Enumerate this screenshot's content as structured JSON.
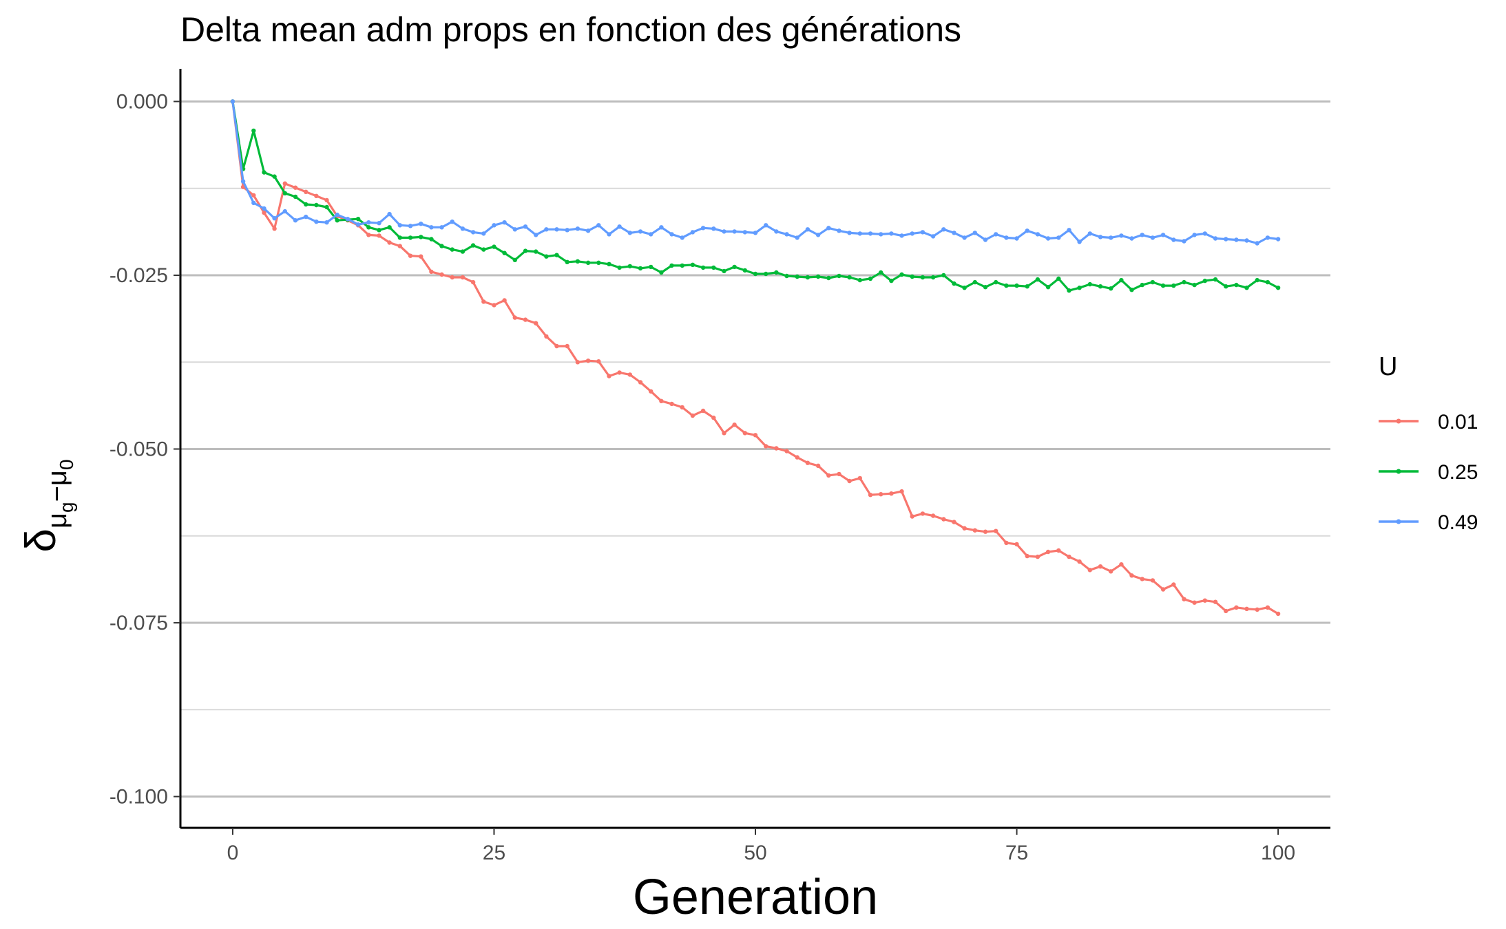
{
  "chart_data": {
    "type": "line",
    "title": "Delta mean adm props en fonction des générations",
    "xlabel": "Generation",
    "ylabel": {
      "symbol": "δ",
      "subscript_left": "μ",
      "subscript_left_sub": "g",
      "operator": "−",
      "subscript_right": "μ",
      "subscript_right_sub": "0"
    },
    "xlim": [
      -5,
      105
    ],
    "ylim": [
      -0.1045,
      0.0047
    ],
    "x_ticks": [
      0,
      25,
      50,
      75,
      100
    ],
    "x_tick_labels": [
      "0",
      "25",
      "50",
      "75",
      "100"
    ],
    "y_ticks": [
      0.0,
      -0.025,
      -0.05,
      -0.075,
      -0.1
    ],
    "y_tick_labels": [
      "0.000",
      "-0.025",
      "-0.050",
      "-0.075",
      "-0.100"
    ],
    "y_minor_ticks": [
      -0.0125,
      -0.0375,
      -0.0625,
      -0.0875
    ],
    "grid": "horizontal",
    "legend": {
      "title": "U",
      "position": "right"
    },
    "series": [
      {
        "name": "0.01",
        "color": "#F8766D",
        "x": [
          0,
          1,
          2,
          3,
          4,
          5,
          6,
          7,
          8,
          9,
          10,
          11,
          12,
          13,
          14,
          15,
          16,
          17,
          18,
          19,
          20,
          21,
          22,
          23,
          24,
          25,
          26,
          27,
          28,
          29,
          30,
          31,
          32,
          33,
          34,
          35,
          36,
          37,
          38,
          39,
          40,
          41,
          42,
          43,
          44,
          45,
          46,
          47,
          48,
          49,
          50,
          51,
          52,
          53,
          54,
          55,
          56,
          57,
          58,
          59,
          60,
          61,
          62,
          63,
          64,
          65,
          66,
          67,
          68,
          69,
          70,
          71,
          72,
          73,
          74,
          75,
          76,
          77,
          78,
          79,
          80,
          81,
          82,
          83,
          84,
          85,
          86,
          87,
          88,
          89,
          90,
          91,
          92,
          93,
          94,
          95,
          96,
          97,
          98,
          99,
          100
        ],
        "values": [
          0,
          -0.0123,
          -0.0135,
          -0.016,
          -0.0183,
          -0.0118,
          -0.0124,
          -0.013,
          -0.0136,
          -0.0142,
          -0.0165,
          -0.0171,
          -0.0178,
          -0.0192,
          -0.0193,
          -0.0203,
          -0.0208,
          -0.0222,
          -0.0223,
          -0.0245,
          -0.0249,
          -0.0253,
          -0.0253,
          -0.026,
          -0.0288,
          -0.0293,
          -0.0286,
          -0.0311,
          -0.0314,
          -0.0319,
          -0.0338,
          -0.0352,
          -0.0352,
          -0.0375,
          -0.0373,
          -0.0374,
          -0.0395,
          -0.039,
          -0.0393,
          -0.0404,
          -0.0417,
          -0.0431,
          -0.0435,
          -0.044,
          -0.0452,
          -0.0445,
          -0.0455,
          -0.0477,
          -0.0465,
          -0.0477,
          -0.048,
          -0.0496,
          -0.0499,
          -0.0503,
          -0.0512,
          -0.052,
          -0.0524,
          -0.0538,
          -0.0536,
          -0.0546,
          -0.0542,
          -0.0566,
          -0.0565,
          -0.0564,
          -0.0561,
          -0.0597,
          -0.0593,
          -0.0596,
          -0.0601,
          -0.0605,
          -0.0614,
          -0.0617,
          -0.0619,
          -0.0618,
          -0.0635,
          -0.0637,
          -0.0654,
          -0.0655,
          -0.0648,
          -0.0646,
          -0.0655,
          -0.0662,
          -0.0674,
          -0.0669,
          -0.0676,
          -0.0666,
          -0.0682,
          -0.0687,
          -0.0689,
          -0.0702,
          -0.0695,
          -0.0716,
          -0.0721,
          -0.0718,
          -0.072,
          -0.0733,
          -0.0728,
          -0.073,
          -0.0731,
          -0.0728,
          -0.0737
        ]
      },
      {
        "name": "0.25",
        "color": "#00BA38",
        "x": [
          0,
          1,
          2,
          3,
          4,
          5,
          6,
          7,
          8,
          9,
          10,
          11,
          12,
          13,
          14,
          15,
          16,
          17,
          18,
          19,
          20,
          21,
          22,
          23,
          24,
          25,
          26,
          27,
          28,
          29,
          30,
          31,
          32,
          33,
          34,
          35,
          36,
          37,
          38,
          39,
          40,
          41,
          42,
          43,
          44,
          45,
          46,
          47,
          48,
          49,
          50,
          51,
          52,
          53,
          54,
          55,
          56,
          57,
          58,
          59,
          60,
          61,
          62,
          63,
          64,
          65,
          66,
          67,
          68,
          69,
          70,
          71,
          72,
          73,
          74,
          75,
          76,
          77,
          78,
          79,
          80,
          81,
          82,
          83,
          84,
          85,
          86,
          87,
          88,
          89,
          90,
          91,
          92,
          93,
          94,
          95,
          96,
          97,
          98,
          99,
          100
        ],
        "values": [
          0,
          -0.0097,
          -0.0042,
          -0.0102,
          -0.0108,
          -0.0132,
          -0.0137,
          -0.0148,
          -0.0149,
          -0.0152,
          -0.0171,
          -0.017,
          -0.0169,
          -0.0181,
          -0.0185,
          -0.0181,
          -0.0196,
          -0.0196,
          -0.0195,
          -0.0198,
          -0.0208,
          -0.0213,
          -0.0216,
          -0.0207,
          -0.0213,
          -0.0209,
          -0.0218,
          -0.0228,
          -0.0215,
          -0.0216,
          -0.0223,
          -0.0221,
          -0.0231,
          -0.023,
          -0.0232,
          -0.0232,
          -0.0234,
          -0.0239,
          -0.0237,
          -0.024,
          -0.0238,
          -0.0246,
          -0.0236,
          -0.0236,
          -0.0235,
          -0.0239,
          -0.0239,
          -0.0244,
          -0.0238,
          -0.0243,
          -0.0248,
          -0.0248,
          -0.0246,
          -0.0251,
          -0.0252,
          -0.0253,
          -0.0252,
          -0.0254,
          -0.0251,
          -0.0253,
          -0.0257,
          -0.0255,
          -0.0246,
          -0.0258,
          -0.0249,
          -0.0252,
          -0.0253,
          -0.0253,
          -0.025,
          -0.0262,
          -0.0268,
          -0.026,
          -0.0267,
          -0.026,
          -0.0265,
          -0.0265,
          -0.0266,
          -0.0256,
          -0.0267,
          -0.0255,
          -0.0272,
          -0.0268,
          -0.0263,
          -0.0266,
          -0.0269,
          -0.0257,
          -0.0271,
          -0.0264,
          -0.026,
          -0.0265,
          -0.0265,
          -0.026,
          -0.0264,
          -0.0258,
          -0.0256,
          -0.0266,
          -0.0264,
          -0.0268,
          -0.0257,
          -0.026,
          -0.0268
        ]
      },
      {
        "name": "0.49",
        "color": "#619CFF",
        "x": [
          0,
          1,
          2,
          3,
          4,
          5,
          6,
          7,
          8,
          9,
          10,
          11,
          12,
          13,
          14,
          15,
          16,
          17,
          18,
          19,
          20,
          21,
          22,
          23,
          24,
          25,
          26,
          27,
          28,
          29,
          30,
          31,
          32,
          33,
          34,
          35,
          36,
          37,
          38,
          39,
          40,
          41,
          42,
          43,
          44,
          45,
          46,
          47,
          48,
          49,
          50,
          51,
          52,
          53,
          54,
          55,
          56,
          57,
          58,
          59,
          60,
          61,
          62,
          63,
          64,
          65,
          66,
          67,
          68,
          69,
          70,
          71,
          72,
          73,
          74,
          75,
          76,
          77,
          78,
          79,
          80,
          81,
          82,
          83,
          84,
          85,
          86,
          87,
          88,
          89,
          90,
          91,
          92,
          93,
          94,
          95,
          96,
          97,
          98,
          99,
          100
        ],
        "values": [
          0,
          -0.0115,
          -0.0146,
          -0.0154,
          -0.0168,
          -0.0158,
          -0.0171,
          -0.0166,
          -0.0173,
          -0.0174,
          -0.0163,
          -0.0169,
          -0.0177,
          -0.0174,
          -0.0175,
          -0.0162,
          -0.0178,
          -0.0179,
          -0.0176,
          -0.0181,
          -0.0181,
          -0.0173,
          -0.0183,
          -0.0188,
          -0.019,
          -0.0178,
          -0.0174,
          -0.0184,
          -0.018,
          -0.0192,
          -0.0184,
          -0.0184,
          -0.0185,
          -0.0183,
          -0.0186,
          -0.0178,
          -0.0191,
          -0.018,
          -0.0189,
          -0.0187,
          -0.0191,
          -0.0181,
          -0.0191,
          -0.0196,
          -0.0188,
          -0.0182,
          -0.0183,
          -0.0187,
          -0.0187,
          -0.0188,
          -0.0189,
          -0.0178,
          -0.0187,
          -0.0191,
          -0.0196,
          -0.0184,
          -0.0192,
          -0.0182,
          -0.0186,
          -0.0189,
          -0.019,
          -0.019,
          -0.0191,
          -0.019,
          -0.0193,
          -0.019,
          -0.0188,
          -0.0194,
          -0.0184,
          -0.0189,
          -0.0196,
          -0.0189,
          -0.0199,
          -0.0191,
          -0.0196,
          -0.0197,
          -0.0186,
          -0.0191,
          -0.0197,
          -0.0196,
          -0.0185,
          -0.0202,
          -0.019,
          -0.0195,
          -0.0196,
          -0.0193,
          -0.0197,
          -0.0192,
          -0.0196,
          -0.0192,
          -0.0199,
          -0.0201,
          -0.0192,
          -0.019,
          -0.0197,
          -0.0198,
          -0.0199,
          -0.02,
          -0.0204,
          -0.0196,
          -0.0198
        ]
      }
    ]
  }
}
